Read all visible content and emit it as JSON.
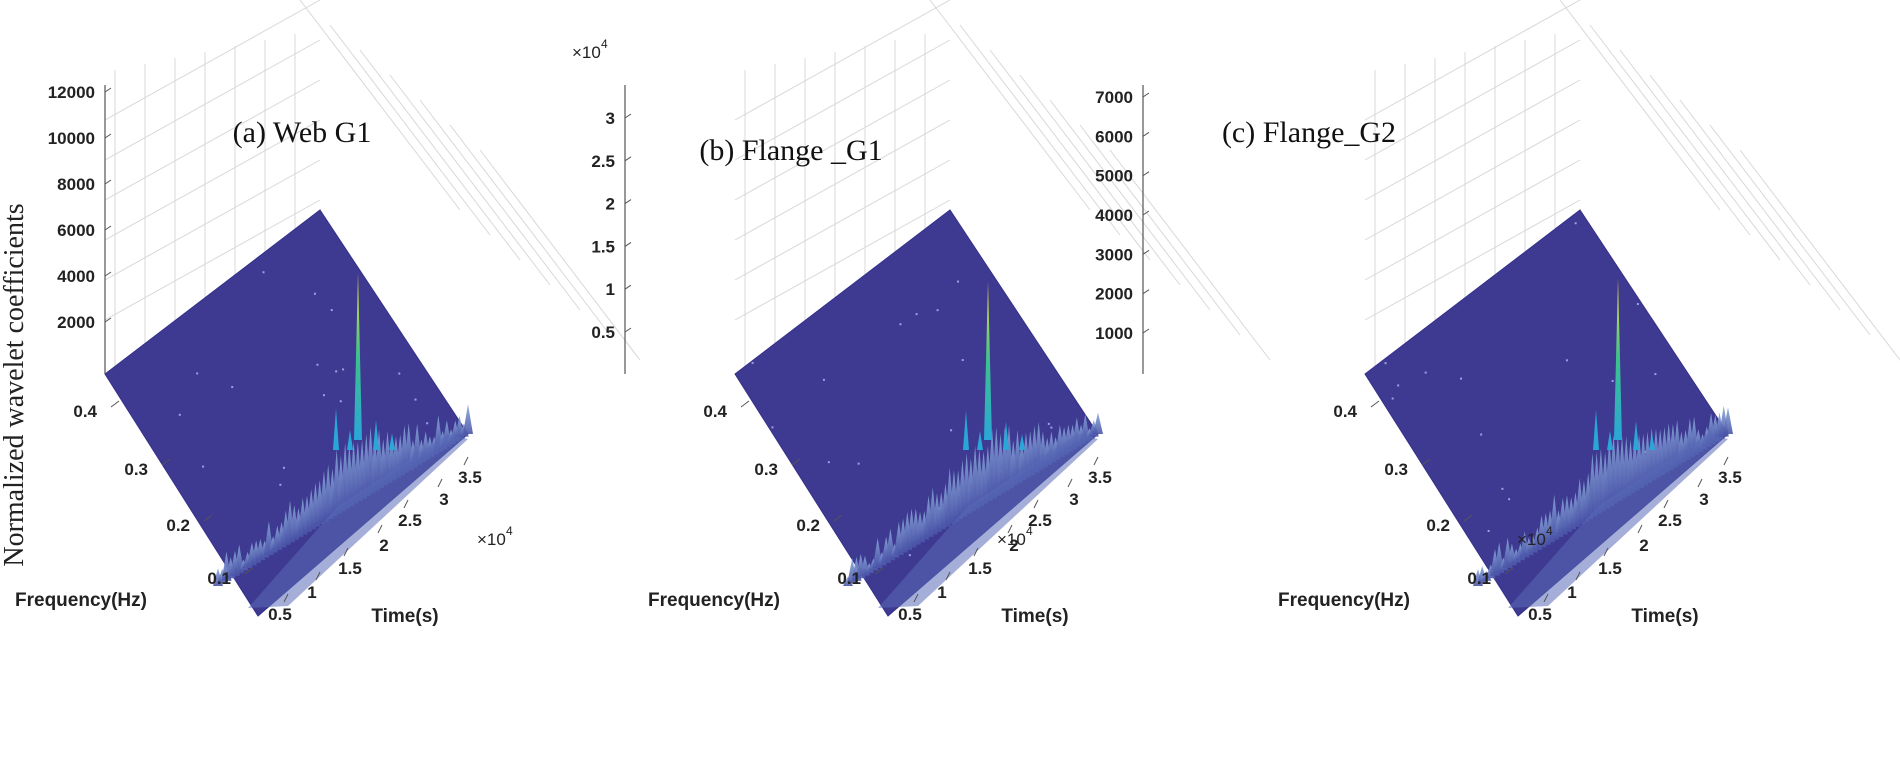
{
  "ylabel_shared": "Normalized wavelet coefficients",
  "colors": {
    "surface": "#3e3991",
    "surface_edge": "#35318a",
    "ridge_low": "#6a86c4",
    "ridge_mid": "#2aa6d8",
    "peak_mid": "#3cc28c",
    "peak_top": "#f5e33a",
    "grid": "#d8d8d8",
    "axis": "#555555"
  },
  "chart_data": [
    {
      "type": "3d-surface",
      "title": "(a) Web  G1",
      "zticks": [
        "12000",
        "10000",
        "8000",
        "6000",
        "4000",
        "2000"
      ],
      "zlim": [
        0,
        12000
      ],
      "freq_label": "Frequency(Hz)",
      "freq_ticks": [
        "0.4",
        "0.3",
        "0.2",
        "0.1"
      ],
      "time_label": "Time(s)",
      "time_ticks": [
        "0.5",
        "1",
        "1.5",
        "2",
        "2.5",
        "3",
        "3.5"
      ],
      "time_multiplier": "×10",
      "time_exponent": "4",
      "peak_value": 5800,
      "peak_time": 2.0,
      "colormap": "parula"
    },
    {
      "type": "3d-surface",
      "title": "(b) Flange _G1",
      "z_multiplier": "×10",
      "z_exponent": "4",
      "zticks": [
        "3",
        "2.5",
        "2",
        "1.5",
        "1",
        "0.5"
      ],
      "zlim": [
        0,
        3.5
      ],
      "freq_label": "Frequency(Hz)",
      "freq_ticks": [
        "0.4",
        "0.3",
        "0.2",
        "0.1"
      ],
      "time_label": "Time(s)",
      "time_ticks": [
        "0.5",
        "1",
        "1.5",
        "2",
        "2.5",
        "3",
        "3.5"
      ],
      "time_multiplier": "×10",
      "time_exponent": "4",
      "peak_value": 1.6,
      "peak_time": 2.0,
      "colormap": "parula"
    },
    {
      "type": "3d-surface",
      "title": "(c) Flange_G2",
      "zticks": [
        "7000",
        "6000",
        "5000",
        "4000",
        "3000",
        "2000",
        "1000"
      ],
      "zlim": [
        0,
        7500
      ],
      "freq_label": "Frequency(Hz)",
      "freq_ticks": [
        "0.4",
        "0.3",
        "0.2",
        "0.1"
      ],
      "time_label": "Time(s)",
      "time_ticks": [
        "0.5",
        "1",
        "1.5",
        "2",
        "2.5",
        "3",
        "3.5"
      ],
      "time_multiplier": "×10",
      "time_exponent": "4",
      "peak_value": 3500,
      "peak_time": 2.0,
      "colormap": "parula"
    }
  ]
}
